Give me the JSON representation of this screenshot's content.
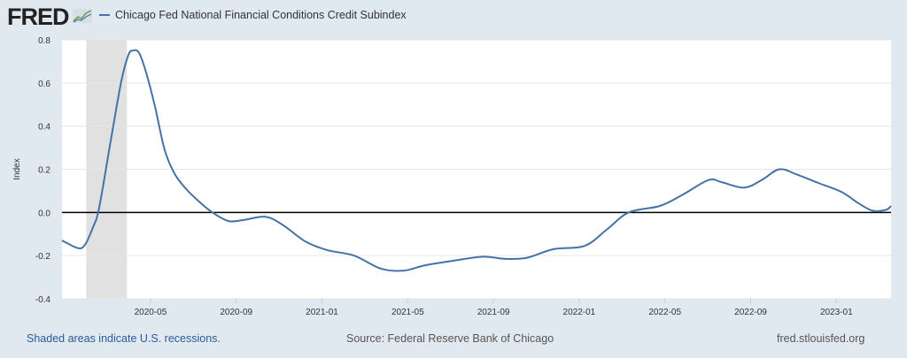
{
  "header": {
    "logo": "FRED",
    "legend_label": "Chicago Fed National Financial Conditions Credit Subindex"
  },
  "footer": {
    "recession_note": "Shaded areas indicate U.S. recessions.",
    "source": "Source: Federal Reserve Bank of Chicago",
    "site": "fred.stlouisfed.org"
  },
  "colors": {
    "series": "#4572a7",
    "recession": "#e1e1e1",
    "zero_line": "#000000",
    "background": "#e1e9f0"
  },
  "chart_data": {
    "type": "line",
    "title": "Chicago Fed National Financial Conditions Credit Subindex",
    "xlabel": "",
    "ylabel": "Index",
    "x_unit": "months since 2020-01-01",
    "xlim": [
      -0.13,
      38.55
    ],
    "ylim": [
      -0.4,
      0.8
    ],
    "y_ticks": [
      -0.4,
      -0.2,
      0.0,
      0.2,
      0.4,
      0.6,
      0.8
    ],
    "y_tick_labels": [
      "-0.4",
      "-0.2",
      "0.0",
      "0.2",
      "0.4",
      "0.6",
      "0.8"
    ],
    "x_ticks": [
      4,
      8,
      12,
      16,
      20,
      24,
      28,
      32,
      36
    ],
    "x_tick_labels": [
      "2020-05",
      "2020-09",
      "2021-01",
      "2021-05",
      "2021-09",
      "2022-01",
      "2022-05",
      "2022-09",
      "2023-01"
    ],
    "grid": true,
    "recessions": [
      [
        1.0,
        2.9
      ]
    ],
    "series": [
      {
        "name": "Chicago Fed National Financial Conditions Credit Subindex",
        "x": [
          -0.13,
          0.61,
          0.94,
          1.31,
          1.6,
          2.14,
          2.64,
          2.97,
          3.17,
          3.46,
          3.79,
          4.21,
          4.66,
          5.12,
          5.65,
          6.27,
          6.89,
          7.64,
          8.34,
          9.37,
          10.2,
          11.23,
          12.26,
          13.5,
          14.74,
          15.78,
          16.81,
          18.05,
          19.5,
          20.53,
          21.56,
          22.8,
          24.25,
          25.28,
          26.31,
          27.76,
          28.79,
          30.03,
          30.65,
          31.69,
          32.51,
          33.34,
          34.17,
          35.2,
          36.24,
          37.07,
          37.69,
          38.31,
          38.55
        ],
        "values": [
          -0.13,
          -0.165,
          -0.15,
          -0.07,
          0.02,
          0.33,
          0.61,
          0.73,
          0.75,
          0.74,
          0.65,
          0.49,
          0.29,
          0.18,
          0.11,
          0.05,
          0.0,
          -0.04,
          -0.035,
          -0.02,
          -0.06,
          -0.135,
          -0.175,
          -0.2,
          -0.26,
          -0.27,
          -0.245,
          -0.225,
          -0.205,
          -0.215,
          -0.21,
          -0.17,
          -0.155,
          -0.08,
          0.0,
          0.03,
          0.08,
          0.15,
          0.14,
          0.115,
          0.15,
          0.2,
          0.175,
          0.135,
          0.095,
          0.04,
          0.008,
          0.012,
          0.03
        ]
      }
    ]
  }
}
